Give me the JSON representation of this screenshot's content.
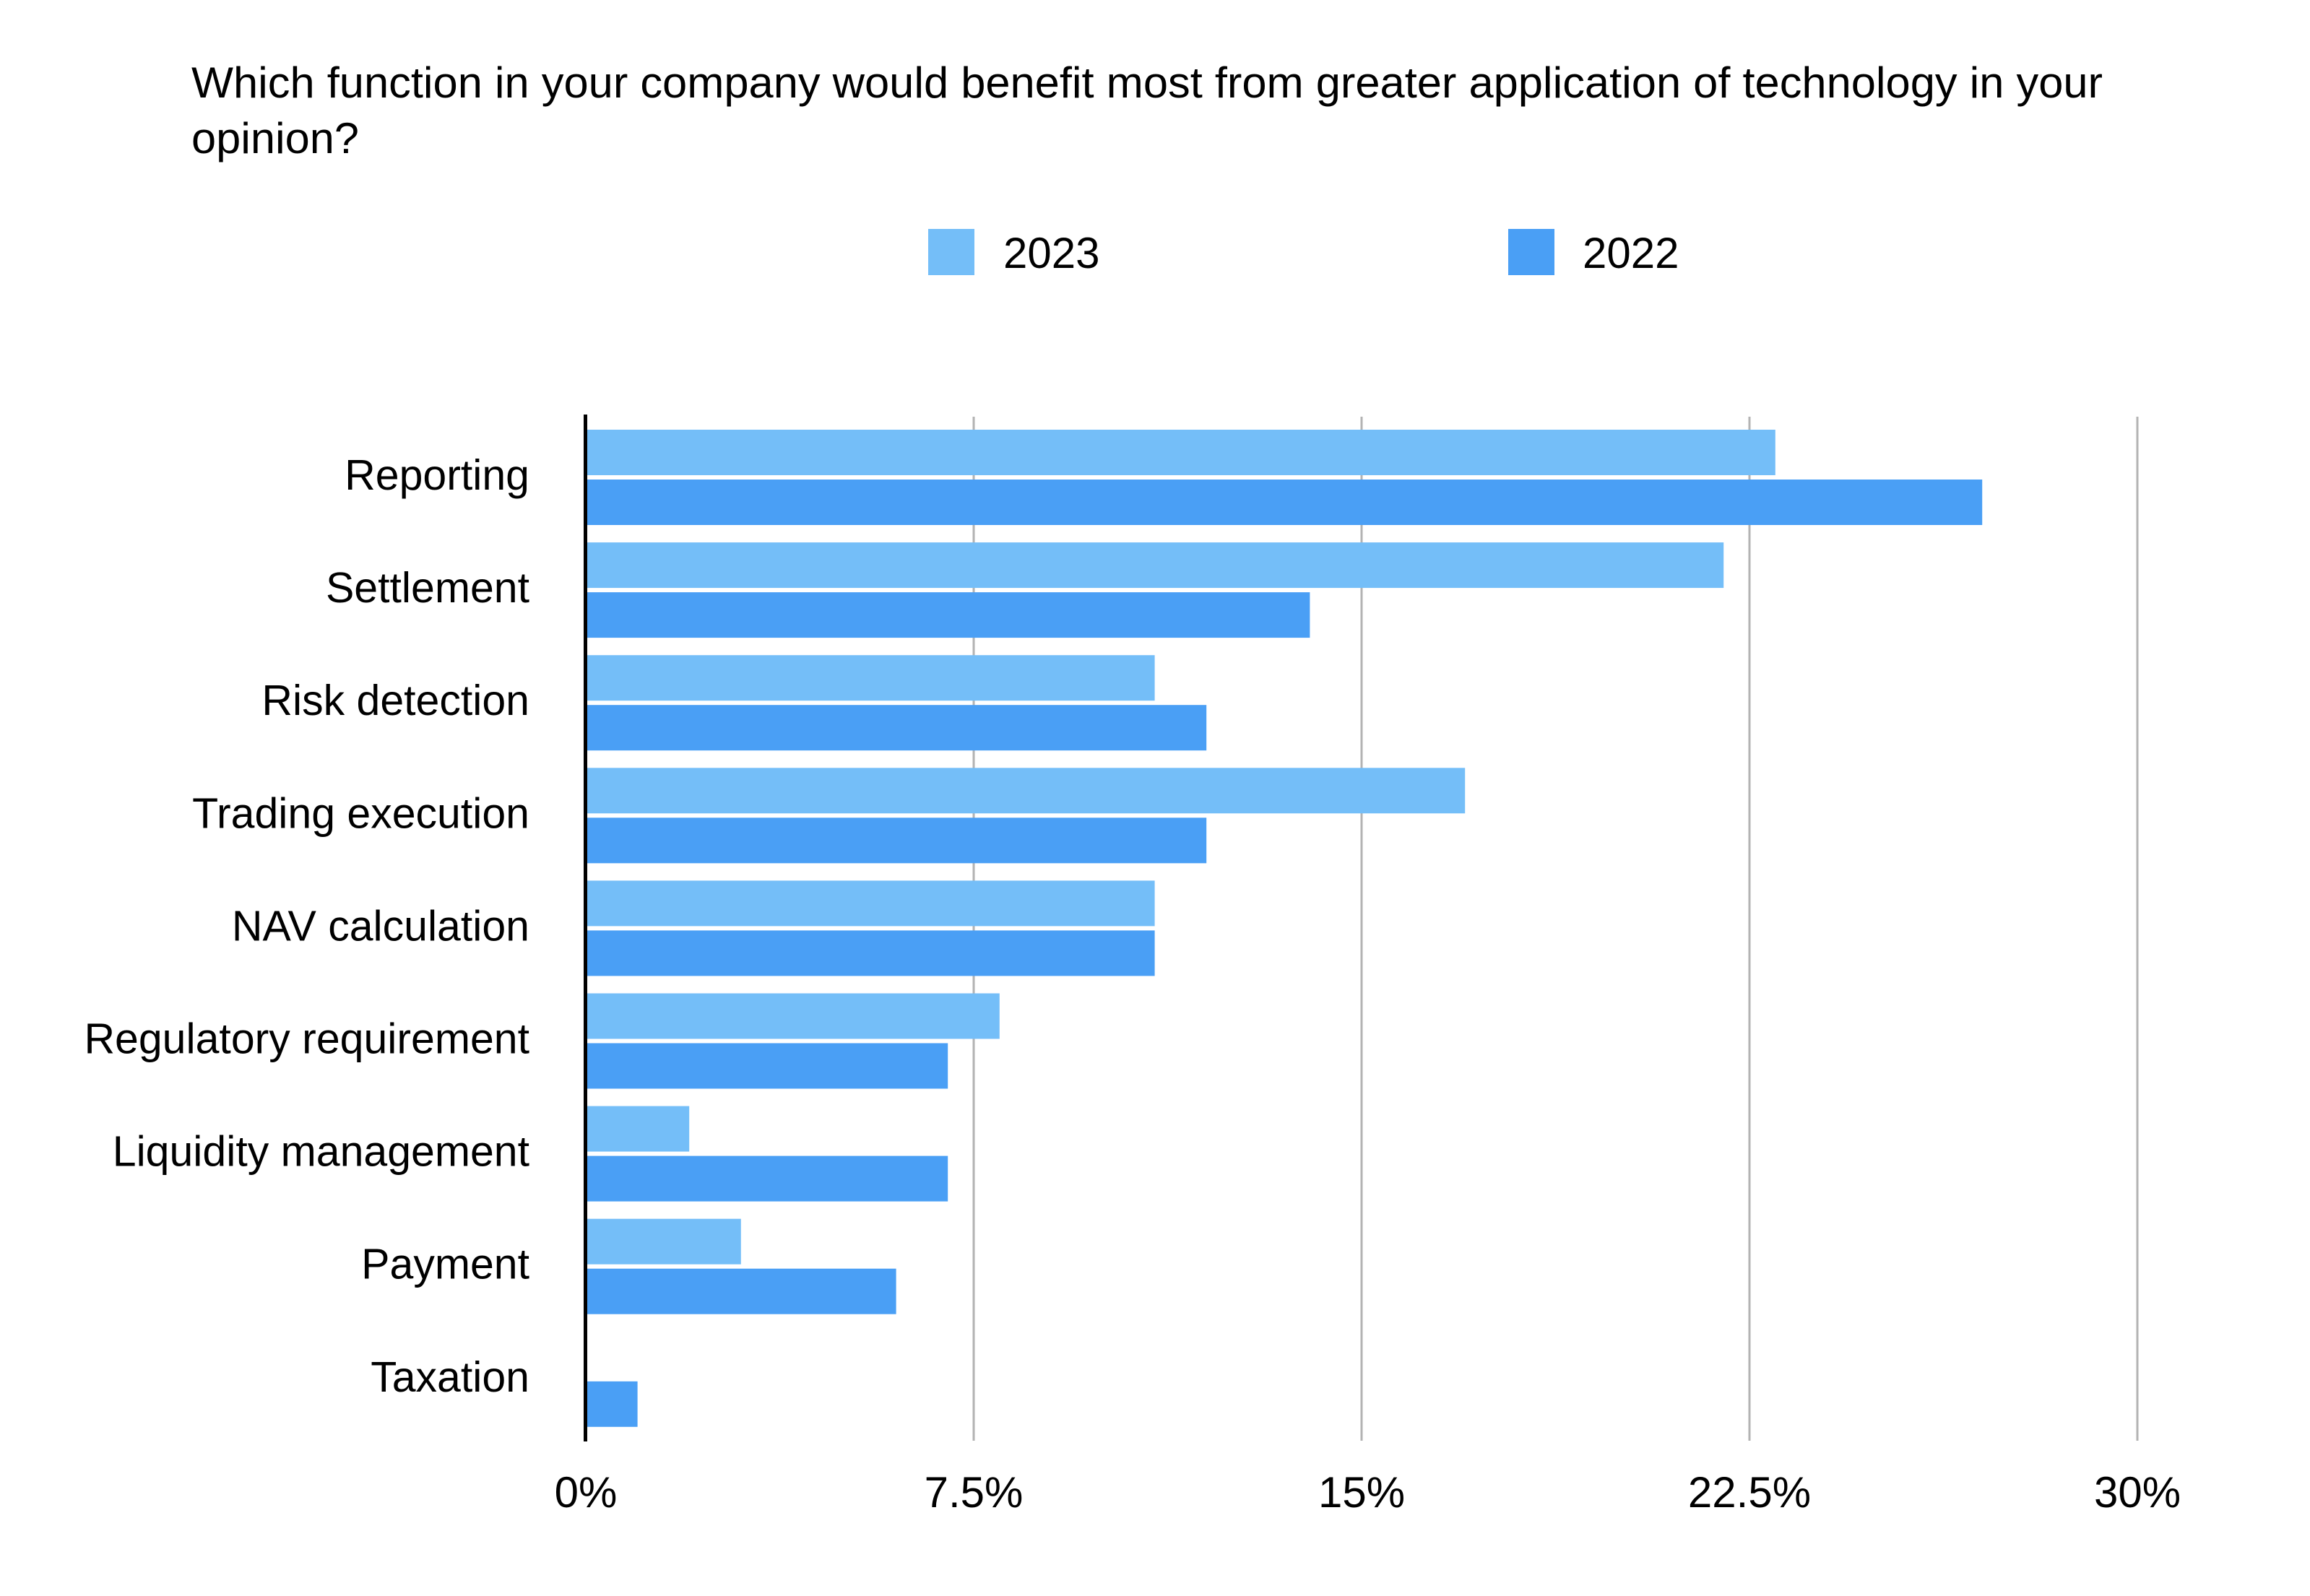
{
  "chart_data": {
    "type": "bar",
    "orientation": "horizontal",
    "title_lines": [
      "Which function in your company would benefit most from greater application of technology in your",
      "opinion?"
    ],
    "categories": [
      "Reporting",
      "Settlement",
      "Risk detection",
      "Trading execution",
      "NAV calculation",
      "Regulatory requirement",
      "Liquidity management",
      "Payment",
      "Taxation"
    ],
    "series": [
      {
        "name": "2023",
        "color": "#74bef8",
        "values": [
          23,
          22,
          11,
          17,
          11,
          8,
          2,
          3,
          0
        ]
      },
      {
        "name": "2022",
        "color": "#4a9ff5",
        "values": [
          27,
          14,
          12,
          12,
          11,
          7,
          7,
          6,
          1
        ]
      }
    ],
    "xlim": [
      0,
      30
    ],
    "xticks": [
      0,
      7.5,
      15,
      22.5,
      30
    ],
    "xtick_labels": [
      "0%",
      "7.5%",
      "15%",
      "22.5%",
      "30%"
    ],
    "xlabel": "",
    "ylabel": "",
    "grid": true,
    "legend_position": "top-center",
    "colors": {
      "axis": "#000000",
      "grid": "#b3b3b3",
      "text": "#000000"
    }
  }
}
